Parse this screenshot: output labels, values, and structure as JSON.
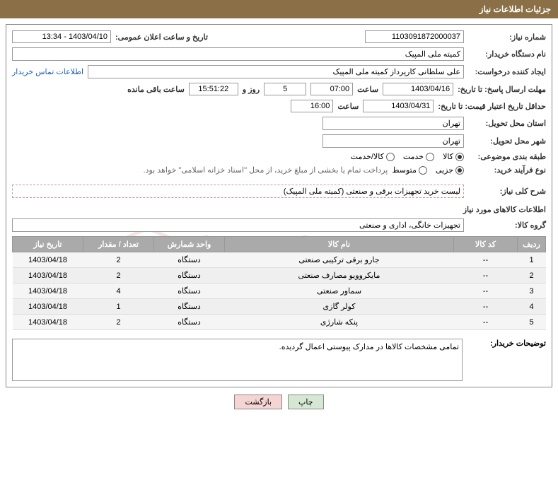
{
  "header": {
    "title": "جزئیات اطلاعات نیاز"
  },
  "fields": {
    "need_number_label": "شماره نیاز:",
    "need_number": "1103091872000037",
    "announce_label": "تاریخ و ساعت اعلان عمومی:",
    "announce_value": "1403/04/10 - 13:34",
    "buyer_org_label": "نام دستگاه خریدار:",
    "buyer_org": "کمیته ملی المپیک",
    "requester_label": "ایجاد کننده درخواست:",
    "requester": "علی سلطانی کارپرداز کمیته ملی المپیک",
    "contact_link": "اطلاعات تماس خریدار",
    "deadline_label": "مهلت ارسال پاسخ: تا تاریخ:",
    "deadline_date": "1403/04/16",
    "time_label": "ساعت",
    "deadline_time": "07:00",
    "days_count": "5",
    "days_and": "روز و",
    "countdown": "15:51:22",
    "remaining": "ساعت باقی مانده",
    "validity_label": "حداقل تاریخ اعتبار قیمت: تا تاریخ:",
    "validity_date": "1403/04/31",
    "validity_time": "16:00",
    "province_label": "استان محل تحویل:",
    "province": "تهران",
    "city_label": "شهر محل تحویل:",
    "city": "تهران",
    "category_label": "طبقه بندی موضوعی:",
    "process_label": "نوع فرآیند خرید:",
    "payment_note": "پرداخت تمام یا بخشی از مبلغ خرید، از محل \"اسناد خزانه اسلامی\" خواهد بود.",
    "general_desc_label": "شرح کلی نیاز:",
    "general_desc": "لیست خرید تجهیزات برقی و صنعتی (کمیته ملی المپیک)",
    "goods_info_title": "اطلاعات کالاهای مورد نیاز",
    "group_label": "گروه کالا:",
    "group_value": "تجهیزات خانگی، اداری و صنعتی",
    "buyer_notes_label": "توضیحات خریدار:",
    "buyer_notes": "تمامی مشخصات کالاها در مدارک پیوستی اعمال گردیده."
  },
  "radios": {
    "category": {
      "options": [
        {
          "label": "کالا",
          "checked": true
        },
        {
          "label": "خدمت",
          "checked": false
        },
        {
          "label": "کالا/خدمت",
          "checked": false
        }
      ]
    },
    "process": {
      "options": [
        {
          "label": "جزیی",
          "checked": true
        },
        {
          "label": "متوسط",
          "checked": false
        }
      ]
    }
  },
  "table": {
    "headers": {
      "row": "ردیف",
      "code": "کد کالا",
      "name": "نام کالا",
      "unit": "واحد شمارش",
      "qty": "تعداد / مقدار",
      "date": "تاریخ نیاز"
    },
    "rows": [
      {
        "n": "1",
        "code": "--",
        "name": "جارو برقی ترکیبی صنعتی",
        "unit": "دستگاه",
        "qty": "2",
        "date": "1403/04/18"
      },
      {
        "n": "2",
        "code": "--",
        "name": "مایکروویو مصارف صنعتی",
        "unit": "دستگاه",
        "qty": "2",
        "date": "1403/04/18"
      },
      {
        "n": "3",
        "code": "--",
        "name": "سماور صنعتی",
        "unit": "دستگاه",
        "qty": "4",
        "date": "1403/04/18"
      },
      {
        "n": "4",
        "code": "--",
        "name": "کولر گازی",
        "unit": "دستگاه",
        "qty": "1",
        "date": "1403/04/18"
      },
      {
        "n": "5",
        "code": "--",
        "name": "پنکه شارژی",
        "unit": "دستگاه",
        "qty": "2",
        "date": "1403/04/18"
      }
    ]
  },
  "buttons": {
    "print": "چاپ",
    "back": "بازگشت"
  },
  "watermark": "AriaTender.net",
  "colors": {
    "header_bg": "#8b6f47",
    "th_bg": "#aaaaaa",
    "btn_print_bg": "#d4e8d4",
    "btn_back_bg": "#f5d4d4"
  }
}
